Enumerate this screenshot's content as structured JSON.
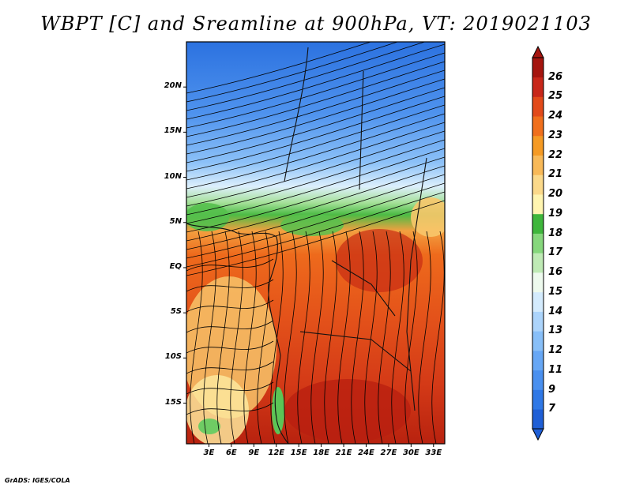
{
  "title": "WBPT [C] and Sreamline at 900hPa, VT: 2019021103",
  "map": {
    "variable": "Wet-bulb potential temperature",
    "units": "C",
    "level": "900hPa",
    "valid_time": "2019021103",
    "lat_ticks": [
      "20N",
      "15N",
      "10N",
      "5N",
      "EQ",
      "5S",
      "10S",
      "15S"
    ],
    "lat_values": [
      20,
      15,
      10,
      5,
      0,
      -5,
      -10,
      -15
    ],
    "lon_ticks": [
      "3E",
      "6E",
      "9E",
      "12E",
      "15E",
      "18E",
      "21E",
      "24E",
      "27E",
      "30E",
      "33E"
    ],
    "lon_values": [
      3,
      6,
      9,
      12,
      15,
      18,
      21,
      24,
      27,
      30,
      33
    ],
    "lon_range": [
      0,
      34.5
    ],
    "lat_range": [
      -19.5,
      25
    ]
  },
  "colorbar": {
    "levels": [
      "7",
      "9",
      "11",
      "12",
      "13",
      "14",
      "15",
      "16",
      "17",
      "18",
      "19",
      "20",
      "21",
      "22",
      "23",
      "24",
      "25",
      "26"
    ],
    "colors": [
      "#1f5fd6",
      "#2f78e6",
      "#4a90ef",
      "#67a7f5",
      "#88bff8",
      "#acd4fb",
      "#d4ebfd",
      "#eefaee",
      "#bfeab5",
      "#86d77c",
      "#3fb63c",
      "#fff5b0",
      "#fbd98a",
      "#f8b958",
      "#f59a24",
      "#f06f1c",
      "#e24a1a",
      "#c8271a",
      "#a5150f"
    ]
  },
  "credit": "GrADS: IGES/COLA"
}
